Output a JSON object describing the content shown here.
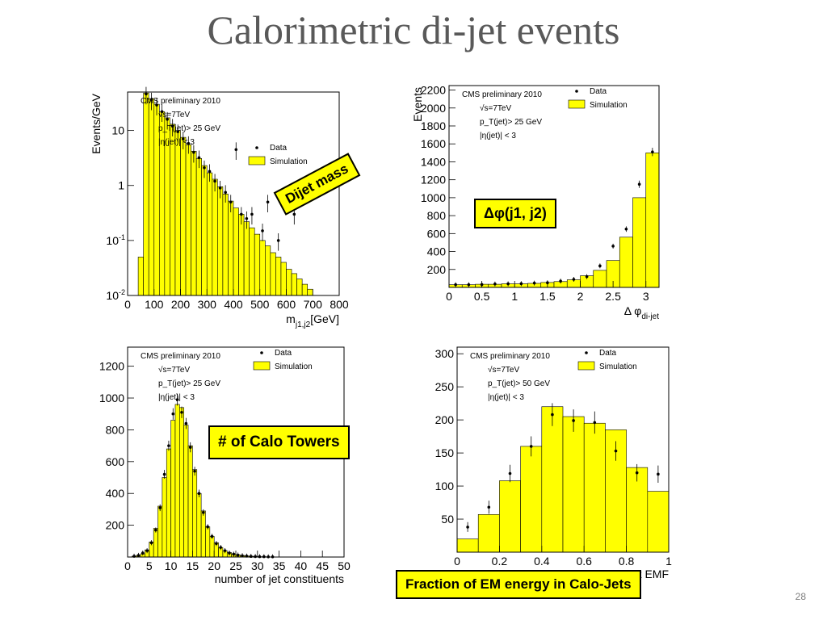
{
  "slide": {
    "title": "Calorimetric di-jet events",
    "page_number": "28"
  },
  "callouts": {
    "dijet_mass": "Dijet mass",
    "delta_phi": "Δφ(j1, j2)",
    "calo_towers": "# of Calo Towers",
    "em_fraction": "Fraction of EM energy in Calo-Jets"
  },
  "colors": {
    "simulation_fill": "#ffff00",
    "outline": "#000000"
  },
  "chart_data": [
    {
      "id": "dijet-mass",
      "type": "bar",
      "title": "",
      "xlabel": "m_{j1,j2}[GeV]",
      "xlabel_main": "m",
      "xlabel_sub": "j1,j2",
      "xlabel_unit": "[GeV]",
      "ylabel": "Events/GeV",
      "log_y": true,
      "xlim": [
        0,
        800
      ],
      "ylim": [
        0.01,
        50
      ],
      "xticks": [
        0,
        100,
        200,
        300,
        400,
        500,
        600,
        700,
        800
      ],
      "xtick_labels": [
        "0",
        "100",
        "200",
        "300",
        "400",
        "500",
        "600",
        "700",
        "800"
      ],
      "yticks": [
        0.01,
        0.1,
        1,
        10
      ],
      "ytick_labels": [
        [
          "10",
          "-2"
        ],
        [
          "10",
          "-1"
        ],
        [
          "1",
          ""
        ],
        [
          "10",
          ""
        ]
      ],
      "annotations": [
        "CMS preliminary 2010",
        "√s=7TeV",
        "p_T(jet)> 25 GeV",
        "|η(jet)| < 3"
      ],
      "legend": {
        "position": "top-right",
        "entries": [
          "Data",
          "Simulation"
        ]
      },
      "bin_width": 20,
      "x": [
        50,
        70,
        90,
        110,
        130,
        150,
        170,
        190,
        210,
        230,
        250,
        270,
        290,
        310,
        330,
        350,
        370,
        390,
        410,
        430,
        450,
        470,
        490,
        510,
        530,
        550,
        570,
        590,
        610,
        630,
        650,
        670,
        690
      ],
      "series": [
        {
          "name": "Simulation",
          "values": [
            0.05,
            48,
            38,
            30,
            22,
            17,
            13,
            10,
            7.5,
            5.5,
            4.2,
            3.1,
            2.3,
            1.7,
            1.3,
            0.95,
            0.7,
            0.52,
            0.39,
            0.3,
            0.22,
            0.17,
            0.13,
            0.1,
            0.08,
            0.06,
            0.05,
            0.04,
            0.03,
            0.025,
            0.02,
            0.016,
            0.013
          ]
        },
        {
          "name": "Data",
          "values": [
            null,
            46,
            36,
            29,
            22,
            16,
            12,
            9.5,
            7,
            5.8,
            4,
            3.2,
            2.1,
            1.8,
            1.2,
            0.9,
            0.75,
            0.5,
            4.5,
            0.3,
            0.25,
            0.3,
            null,
            0.15,
            0.5,
            null,
            0.1,
            null,
            null,
            0.3,
            null,
            null,
            null
          ]
        }
      ]
    },
    {
      "id": "delta-phi",
      "type": "bar",
      "title": "",
      "xlabel": "Δ φ_{di-jet}",
      "xlabel_main": "Δ φ",
      "xlabel_sub": "di-jet",
      "ylabel": "Events",
      "xlim": [
        0,
        3.2
      ],
      "ylim": [
        0,
        2250
      ],
      "xticks": [
        0,
        0.5,
        1,
        1.5,
        2,
        2.5,
        3
      ],
      "xtick_labels": [
        "0",
        "0.5",
        "1",
        "1.5",
        "2",
        "2.5",
        "3"
      ],
      "yticks": [
        200,
        400,
        600,
        800,
        1000,
        1200,
        1400,
        1600,
        1800,
        2000,
        2200
      ],
      "ytick_labels": [
        "200",
        "400",
        "600",
        "800",
        "1000",
        "1200",
        "1400",
        "1600",
        "1800",
        "2000",
        "2200"
      ],
      "annotations": [
        "CMS preliminary 2010",
        "√s=7TeV",
        "p_T(jet)> 25 GeV",
        "|η(jet)| < 3"
      ],
      "legend": {
        "position": "top-right",
        "entries": [
          "Data",
          "Simulation"
        ]
      },
      "bin_width": 0.2,
      "x": [
        0.1,
        0.3,
        0.5,
        0.7,
        0.9,
        1.1,
        1.3,
        1.5,
        1.7,
        1.9,
        2.1,
        2.3,
        2.5,
        2.7,
        2.9,
        3.1
      ],
      "series": [
        {
          "name": "Simulation",
          "values": [
            30,
            30,
            35,
            35,
            40,
            40,
            45,
            55,
            65,
            85,
            130,
            190,
            300,
            560,
            1000,
            1500
          ]
        },
        {
          "name": "Data",
          "values": [
            30,
            30,
            32,
            38,
            40,
            42,
            48,
            52,
            70,
            90,
            120,
            240,
            460,
            650,
            1150,
            1510
          ]
        }
      ]
    },
    {
      "id": "jet-constituents",
      "type": "bar",
      "title": "",
      "xlabel": "number of jet constituents",
      "ylabel": "",
      "xlim": [
        0,
        50
      ],
      "ylim": [
        0,
        1320
      ],
      "xticks": [
        0,
        5,
        10,
        15,
        20,
        25,
        30,
        35,
        40,
        45,
        50
      ],
      "xtick_labels": [
        "0",
        "5",
        "10",
        "15",
        "20",
        "25",
        "30",
        "35",
        "40",
        "45",
        "50"
      ],
      "yticks": [
        200,
        400,
        600,
        800,
        1000,
        1200
      ],
      "ytick_labels": [
        "200",
        "400",
        "600",
        "800",
        "1000",
        "1200"
      ],
      "annotations": [
        "CMS preliminary 2010",
        "√s=7TeV",
        "p_T(jet)> 25 GeV",
        "|η(jet)| < 3"
      ],
      "legend": {
        "position": "top-right",
        "entries": [
          "Data",
          "Simulation"
        ]
      },
      "bin_width": 1,
      "x": [
        0.5,
        1.5,
        2.5,
        3.5,
        4.5,
        5.5,
        6.5,
        7.5,
        8.5,
        9.5,
        10.5,
        11.5,
        12.5,
        13.5,
        14.5,
        15.5,
        16.5,
        17.5,
        18.5,
        19.5,
        20.5,
        21.5,
        22.5,
        23.5,
        24.5,
        25.5,
        26.5,
        27.5,
        28.5,
        29.5,
        30.5,
        31.5,
        32.5,
        33.5,
        34.5
      ],
      "series": [
        {
          "name": "Simulation",
          "values": [
            0,
            5,
            10,
            20,
            45,
            95,
            180,
            320,
            500,
            680,
            860,
            960,
            940,
            830,
            700,
            550,
            400,
            290,
            190,
            130,
            90,
            60,
            40,
            28,
            20,
            14,
            10,
            7,
            5,
            3,
            2,
            2,
            1,
            1,
            0
          ]
        },
        {
          "name": "Data",
          "values": [
            0,
            5,
            10,
            25,
            40,
            90,
            170,
            310,
            520,
            700,
            900,
            990,
            910,
            840,
            690,
            540,
            400,
            280,
            190,
            130,
            85,
            60,
            40,
            25,
            18,
            12,
            8,
            6,
            4,
            3,
            2,
            2,
            1,
            1,
            0
          ]
        }
      ]
    },
    {
      "id": "jet-emf",
      "type": "bar",
      "title": "",
      "xlabel": "Jet EMF",
      "ylabel": "",
      "xlim": [
        0,
        1
      ],
      "ylim": [
        0,
        310
      ],
      "xticks": [
        0,
        0.2,
        0.4,
        0.6,
        0.8,
        1
      ],
      "xtick_labels": [
        "0",
        "0.2",
        "0.4",
        "0.6",
        "0.8",
        "1"
      ],
      "yticks": [
        50,
        100,
        150,
        200,
        250,
        300
      ],
      "ytick_labels": [
        "50",
        "100",
        "150",
        "200",
        "250",
        "300"
      ],
      "annotations": [
        "CMS preliminary 2010",
        "√s=7TeV",
        "p_T(jet)> 50 GeV",
        "|η(jet)| < 3"
      ],
      "legend": {
        "position": "top-right",
        "entries": [
          "Data",
          "Simulation"
        ]
      },
      "bin_width": 0.1,
      "x": [
        0.05,
        0.15,
        0.25,
        0.35,
        0.45,
        0.55,
        0.65,
        0.75,
        0.85,
        0.95
      ],
      "series": [
        {
          "name": "Simulation",
          "values": [
            20,
            57,
            108,
            160,
            220,
            205,
            195,
            185,
            128,
            92
          ]
        },
        {
          "name": "Data",
          "values": [
            38,
            68,
            119,
            160,
            208,
            199,
            196,
            153,
            120,
            118
          ]
        }
      ]
    }
  ]
}
